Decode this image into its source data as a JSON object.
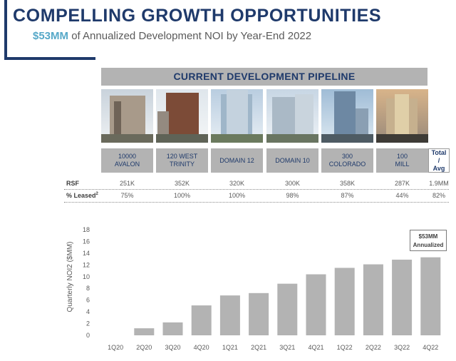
{
  "header": {
    "title": "COMPELLING GROWTH OPPORTUNITIES",
    "subtitle_accent": "$53MM",
    "subtitle_rest": " of Annualized Development NOI by Year-End 2022"
  },
  "pipeline": {
    "heading": "CURRENT DEVELOPMENT PIPELINE",
    "properties": [
      {
        "line1": "10000",
        "line2": "AVALON",
        "rsf": "251K",
        "leased": "75%"
      },
      {
        "line1": "120 WEST",
        "line2": "TRINITY",
        "rsf": "352K",
        "leased": "100%"
      },
      {
        "line1": "DOMAIN 12",
        "line2": "",
        "rsf": "320K",
        "leased": "100%"
      },
      {
        "line1": "DOMAIN 10",
        "line2": "",
        "rsf": "300K",
        "leased": "98%"
      },
      {
        "line1": "300",
        "line2": "COLORADO",
        "rsf": "358K",
        "leased": "87%"
      },
      {
        "line1": "100",
        "line2": "MILL",
        "rsf": "287K",
        "leased": "44%"
      }
    ],
    "total": {
      "line1": "Total /",
      "line2": "Avg",
      "rsf": "1.9MM",
      "leased": "82%"
    },
    "rsf_label": "RSF",
    "leased_label": "% Leased",
    "leased_sup": "2"
  },
  "callout": {
    "line1": "$53MM",
    "line2": "Annualized"
  },
  "chart_data": {
    "type": "bar",
    "categories": [
      "1Q20",
      "2Q20",
      "3Q20",
      "4Q20",
      "1Q21",
      "2Q21",
      "3Q21",
      "4Q21",
      "1Q22",
      "2Q22",
      "3Q22",
      "4Q22"
    ],
    "values": [
      0,
      1.2,
      2.2,
      5.1,
      6.8,
      7.2,
      8.8,
      10.4,
      11.5,
      12.1,
      12.9,
      13.3
    ],
    "ylabel": "Quarterly NOI2 ($MM)",
    "ylim": [
      0,
      18
    ],
    "yticks": [
      0,
      2,
      4,
      6,
      8,
      10,
      12,
      14,
      16,
      18
    ],
    "bar_color": "#b3b3b3",
    "grid": false
  },
  "colors": {
    "navy": "#1f3a6b",
    "accent": "#56a8c8",
    "gray": "#b3b3b3"
  }
}
